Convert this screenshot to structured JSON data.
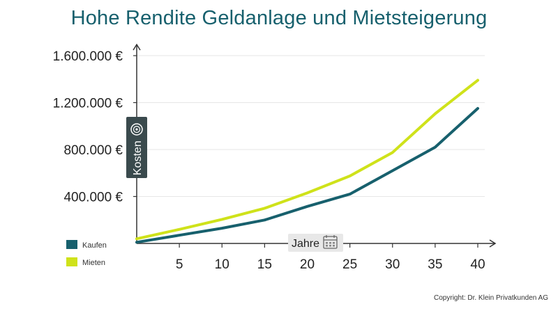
{
  "chart_data": {
    "type": "line",
    "title": "Hohe Rendite Geldanlage und Mietsteigerung",
    "xlabel": "Jahre",
    "ylabel": "Kosten",
    "x": [
      0,
      5,
      10,
      15,
      20,
      25,
      30,
      35,
      40
    ],
    "xticks": [
      "5",
      "10",
      "15",
      "20",
      "25",
      "30",
      "35",
      "40"
    ],
    "xtick_values": [
      5,
      10,
      15,
      20,
      25,
      30,
      35,
      40
    ],
    "yticks": [
      "400.000 €",
      "800.000 €",
      "1.200.000 €",
      "1.600.000 €"
    ],
    "ytick_values": [
      400000,
      800000,
      1200000,
      1600000
    ],
    "xlim": [
      0,
      42
    ],
    "ylim": [
      0,
      1620000
    ],
    "grid": "horizontal",
    "legend_position": "bottom-left",
    "series": [
      {
        "name": "Kaufen",
        "color": "#17606d",
        "values": [
          10000,
          70000,
          130000,
          200000,
          315000,
          420000,
          620000,
          820000,
          1150000
        ]
      },
      {
        "name": "Mieten",
        "color": "#cfe21a",
        "values": [
          40000,
          120000,
          205000,
          300000,
          430000,
          575000,
          775000,
          1105000,
          1390000
        ]
      }
    ]
  },
  "copyright": "Copyright: Dr. Klein Privatkunden AG",
  "colors": {
    "title": "#17606d",
    "axis": "#333333",
    "grid": "#e6e6e6",
    "label_box": "#3a4a4d"
  },
  "icons": {
    "ylabel_icon": "coin-icon",
    "xlabel_icon": "calendar-icon"
  }
}
